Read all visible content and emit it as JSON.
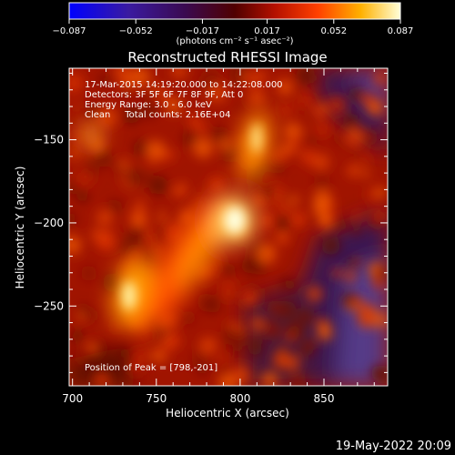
{
  "chart_data": {
    "type": "heatmap",
    "title": "Reconstructed RHESSI Image",
    "xlabel": "Heliocentric X (arcsec)",
    "ylabel": "Heliocentric Y (arcsec)",
    "xlim": [
      698,
      888
    ],
    "ylim": [
      -298,
      -107
    ],
    "xticks": [
      700,
      750,
      800,
      850
    ],
    "yticks": [
      -150,
      -200,
      -250
    ],
    "colorbar": {
      "range": [
        -0.087,
        0.087
      ],
      "ticks": [
        "-0.087",
        "-0.052",
        "-0.017",
        "0.017",
        "0.052",
        "0.087"
      ],
      "unit_label": "(photons cm⁻² s⁻¹ asec⁻²)"
    },
    "annotations": [
      "17-Mar-2015 14:19:20.000 to 14:22:08.000",
      "Detectors: 3F 5F 6F 7F 8F 9F, Att 0",
      "Energy Range: 3.0 - 6.0 keV",
      "Clean     Total counts: 2.16E+04"
    ],
    "peak_label": "Position of Peak = [798,-201]",
    "peak": [
      798,
      -201
    ],
    "sources": [
      {
        "x": 798,
        "y": -201,
        "value": 0.087
      },
      {
        "x": 735,
        "y": -248,
        "value": 0.07
      },
      {
        "x": 812,
        "y": -160,
        "value": 0.065
      },
      {
        "x": 730,
        "y": -152,
        "value": 0.045
      }
    ]
  },
  "footer": {
    "date": "19-May-2022 20:09"
  }
}
